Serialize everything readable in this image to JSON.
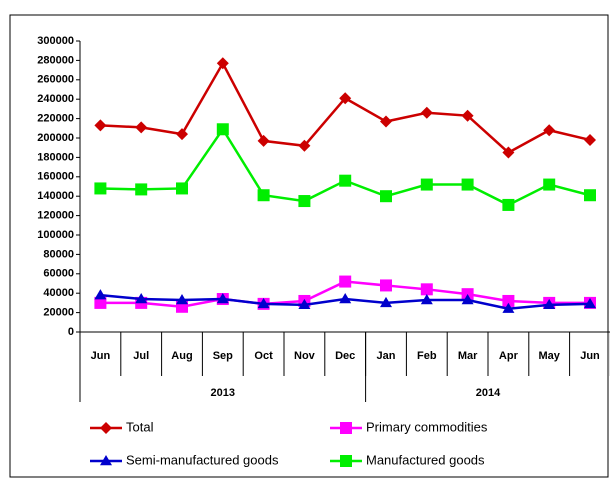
{
  "chart_data": {
    "type": "line",
    "categories": [
      "Jun",
      "Jul",
      "Aug",
      "Sep",
      "Oct",
      "Nov",
      "Dec",
      "Jan",
      "Feb",
      "Mar",
      "Apr",
      "May",
      "Jun"
    ],
    "x_groups": [
      {
        "label": "2013",
        "categories": 7
      },
      {
        "label": "2014",
        "categories": 6
      }
    ],
    "series": [
      {
        "name": "Total",
        "color": "#cc0000",
        "marker": "diamond",
        "values": [
          213000,
          211000,
          204000,
          277000,
          197000,
          192000,
          241000,
          217000,
          226000,
          223000,
          185000,
          208000,
          198000
        ]
      },
      {
        "name": "Primary commodities",
        "color": "#ff00ff",
        "marker": "square",
        "values": [
          30000,
          30000,
          26000,
          34000,
          29000,
          32000,
          52000,
          48000,
          44000,
          39000,
          32000,
          30000,
          30000
        ]
      },
      {
        "name": "Semi-manufactured goods",
        "color": "#0000cc",
        "marker": "triangle",
        "values": [
          38000,
          34000,
          33000,
          34000,
          29000,
          28000,
          34000,
          30000,
          33000,
          33000,
          24000,
          28000,
          29000
        ]
      },
      {
        "name": "Manufactured  goods",
        "color": "#00ee00",
        "marker": "square",
        "values": [
          148000,
          147000,
          148000,
          209000,
          141000,
          135000,
          156000,
          140000,
          152000,
          152000,
          131000,
          152000,
          141000
        ]
      }
    ],
    "ylim": [
      0,
      300000
    ],
    "yticks": [
      0,
      20000,
      40000,
      60000,
      80000,
      100000,
      120000,
      140000,
      160000,
      180000,
      200000,
      220000,
      240000,
      260000,
      280000,
      300000
    ],
    "grid": false,
    "legend": "bottom"
  }
}
